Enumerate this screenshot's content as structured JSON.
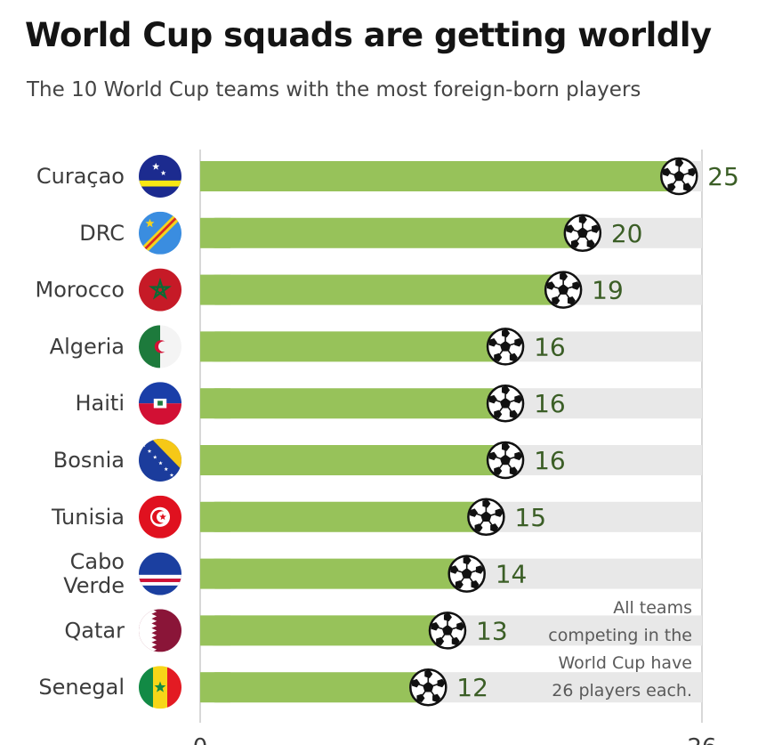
{
  "chart_data": {
    "type": "bar",
    "orientation": "horizontal",
    "title": "World Cup squads are getting worldly",
    "subtitle": "The 10 World Cup teams with the most foreign-born players",
    "categories": [
      "Curaçao",
      "DRC",
      "Morocco",
      "Algeria",
      "Haiti",
      "Bosnia",
      "Tunisia",
      "Cabo Verde",
      "Qatar",
      "Senegal"
    ],
    "category_lines": [
      [
        "Curaçao"
      ],
      [
        "DRC"
      ],
      [
        "Morocco"
      ],
      [
        "Algeria"
      ],
      [
        "Haiti"
      ],
      [
        "Bosnia"
      ],
      [
        "Tunisia"
      ],
      [
        "Cabo",
        "Verde"
      ],
      [
        "Qatar"
      ],
      [
        "Senegal"
      ]
    ],
    "values": [
      25,
      20,
      19,
      16,
      16,
      16,
      15,
      14,
      13,
      12
    ],
    "xlim": [
      0,
      26
    ],
    "x_tick_labels": [
      "0",
      "26"
    ],
    "note": "All teams competing in the World Cup have 26 players each.",
    "note_lines": [
      "All teams",
      "competing in the",
      "World Cup have",
      "26 players each."
    ],
    "flag_icons": [
      "curacao-flag-icon",
      "drc-flag-icon",
      "morocco-flag-icon",
      "algeria-flag-icon",
      "haiti-flag-icon",
      "bosnia-flag-icon",
      "tunisia-flag-icon",
      "cabo-verde-flag-icon",
      "qatar-flag-icon",
      "senegal-flag-icon"
    ],
    "colors": {
      "bar": "#97c25a",
      "track": "#e8e8e8",
      "value_label": "#3b5e26",
      "axis": "#d8d8d8"
    }
  }
}
